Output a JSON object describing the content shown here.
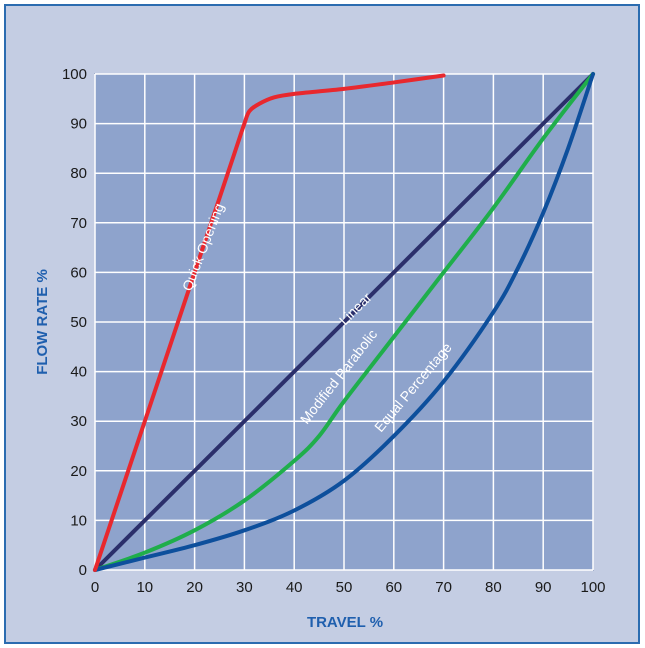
{
  "chart_data": {
    "type": "line",
    "title": "",
    "xlabel": "TRAVEL %",
    "ylabel": "FLOW RATE %",
    "xlim": [
      0,
      100
    ],
    "ylim": [
      0,
      100
    ],
    "x_ticks": [
      "0",
      "10",
      "20",
      "30",
      "40",
      "50",
      "60",
      "70",
      "80",
      "90",
      "100"
    ],
    "y_ticks": [
      "0",
      "10",
      "20",
      "30",
      "40",
      "50",
      "60",
      "70",
      "80",
      "90",
      "100"
    ],
    "grid": true,
    "legend": "none (curves labeled inline)",
    "series": [
      {
        "name": "Quick Opening",
        "color": "#e8282e",
        "points": [
          [
            0,
            0
          ],
          [
            10,
            30
          ],
          [
            20,
            60
          ],
          [
            28,
            84
          ],
          [
            30,
            90
          ],
          [
            31,
            92.5
          ],
          [
            33,
            94
          ],
          [
            36,
            95.3
          ],
          [
            40,
            96
          ],
          [
            50,
            97
          ],
          [
            60,
            98.3
          ],
          [
            70,
            99.7
          ]
        ]
      },
      {
        "name": "Linear",
        "color": "#2b2f6b",
        "points": [
          [
            0,
            0
          ],
          [
            100,
            100
          ]
        ]
      },
      {
        "name": "Modified Parabolic",
        "color": "#1fae4b",
        "points": [
          [
            0,
            0
          ],
          [
            10,
            3.5
          ],
          [
            20,
            8
          ],
          [
            30,
            14
          ],
          [
            40,
            22
          ],
          [
            45,
            27
          ],
          [
            50,
            34
          ],
          [
            60,
            47
          ],
          [
            70,
            60
          ],
          [
            80,
            73
          ],
          [
            90,
            87
          ],
          [
            100,
            100
          ]
        ]
      },
      {
        "name": "Equal Percentage",
        "color": "#0d4f9c",
        "points": [
          [
            0,
            0
          ],
          [
            10,
            2.5
          ],
          [
            20,
            5
          ],
          [
            30,
            8
          ],
          [
            40,
            12
          ],
          [
            50,
            18
          ],
          [
            60,
            27
          ],
          [
            70,
            38
          ],
          [
            80,
            52
          ],
          [
            85,
            61
          ],
          [
            90,
            72
          ],
          [
            95,
            85
          ],
          [
            100,
            100
          ]
        ]
      }
    ]
  },
  "colors": {
    "frame_background": "#c4cde3",
    "plot_background": "#8ea3cc",
    "grid": "#ffffff",
    "axis_title": "#1f5fae",
    "frame_border": "#2b6cb0"
  }
}
